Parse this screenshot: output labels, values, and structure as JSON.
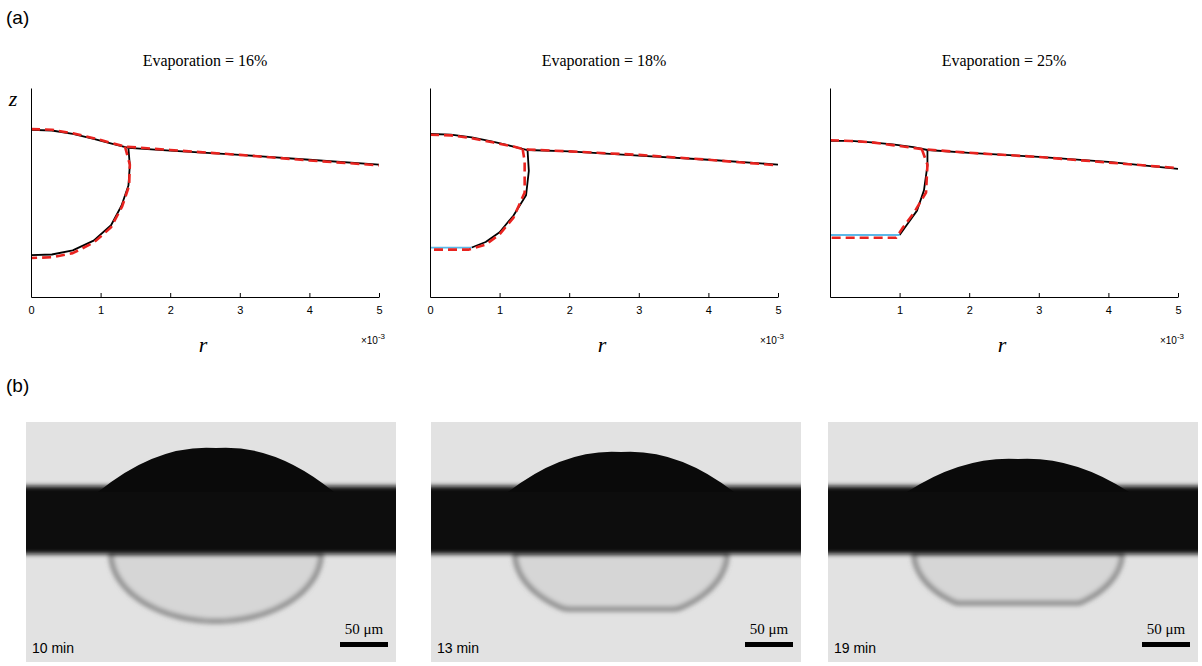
{
  "chart_data": [
    {
      "type": "line",
      "title": "Evaporation = 16%",
      "x_label": "r",
      "y_label": "z",
      "xlim": [
        0,
        0.005
      ],
      "ylim": [
        0,
        0.003
      ],
      "xticks": [
        0,
        {
          "value": 0.001,
          "label": "1"
        },
        {
          "value": 0.002,
          "label": "2"
        },
        {
          "value": 0.003,
          "label": "3"
        },
        {
          "value": 0.004,
          "label": "4"
        },
        {
          "value": 0.005,
          "label": "5"
        }
      ],
      "x_multiplier": {
        "base": "×10",
        "power": "-3"
      },
      "tick_labels": "x",
      "series": [
        {
          "color": "#000000",
          "line_style": "solid",
          "x": [
            0,
            0.0003,
            0.0006,
            0.0009,
            0.0012,
            0.0014,
            0.002,
            0.003,
            0.004,
            0.005
          ],
          "values": [
            0.0024,
            0.00239,
            0.00234,
            0.00227,
            0.00219,
            0.00214,
            0.0021,
            0.00204,
            0.00197,
            0.0019
          ]
        },
        {
          "color": "#000000",
          "line_style": "solid",
          "x": [
            0.0014,
            0.00142,
            0.0014,
            0.0013,
            0.00115,
            0.0009,
            0.0006,
            0.0003,
            0
          ],
          "values": [
            0.00213,
            0.00189,
            0.0016,
            0.00131,
            0.00103,
            0.00081,
            0.00067,
            0.00061,
            0.0006
          ]
        },
        {
          "color": "#e8231f",
          "line_style": "dashed",
          "x": [
            0,
            0.0003,
            0.0006,
            0.0009,
            0.0012,
            0.00135,
            0.002,
            0.003,
            0.004,
            0.005
          ],
          "values": [
            0.00241,
            0.0024,
            0.00235,
            0.00228,
            0.0022,
            0.00216,
            0.00211,
            0.00204,
            0.00196,
            0.00189
          ]
        },
        {
          "color": "#e8231f",
          "line_style": "dashed",
          "x": [
            0.00135,
            0.00142,
            0.00141,
            0.00131,
            0.00115,
            0.0009,
            0.0006,
            0.0003,
            0
          ],
          "values": [
            0.00216,
            0.0019,
            0.0016,
            0.0013,
            0.001,
            0.00078,
            0.00063,
            0.00057,
            0.00056
          ]
        }
      ]
    },
    {
      "type": "line",
      "title": "Evaporation = 18%",
      "x_label": "r",
      "xlim": [
        0,
        0.005
      ],
      "ylim": [
        0,
        0.003
      ],
      "xticks": [
        0,
        {
          "value": 0.001,
          "label": "1"
        },
        {
          "value": 0.002,
          "label": "2"
        },
        {
          "value": 0.003,
          "label": "3"
        },
        {
          "value": 0.004,
          "label": "4"
        },
        {
          "value": 0.005,
          "label": "5"
        }
      ],
      "x_multiplier": {
        "base": "×10",
        "power": "-3"
      },
      "tick_labels": "x",
      "series": [
        {
          "color": "#000000",
          "line_style": "solid",
          "x": [
            0,
            0.0003,
            0.0006,
            0.0009,
            0.0012,
            0.0014,
            0.002,
            0.003,
            0.004,
            0.005
          ],
          "values": [
            0.00234,
            0.00233,
            0.00229,
            0.00223,
            0.00216,
            0.00211,
            0.00209,
            0.00203,
            0.00197,
            0.0019
          ]
        },
        {
          "color": "#000000",
          "line_style": "solid",
          "x": [
            0.0014,
            0.00142,
            0.00138,
            0.0012,
            0.001,
            0.0008,
            0.0006
          ],
          "values": [
            0.00213,
            0.00181,
            0.00146,
            0.00117,
            0.00093,
            0.00079,
            0.00071
          ]
        },
        {
          "color": "#5bb8e8",
          "line_style": "solid",
          "x": [
            0,
            0.0006
          ],
          "values": [
            0.00071,
            0.00071
          ]
        },
        {
          "color": "#e8231f",
          "line_style": "dashed",
          "x": [
            0,
            0.0003,
            0.0006,
            0.0009,
            0.0012,
            0.00135,
            0.002,
            0.003,
            0.004,
            0.005
          ],
          "values": [
            0.00233,
            0.00232,
            0.00228,
            0.00222,
            0.00216,
            0.00212,
            0.00209,
            0.00204,
            0.00197,
            0.00189
          ]
        },
        {
          "color": "#e8231f",
          "line_style": "dashed",
          "x": [
            0.00133,
            0.00136,
            0.00136,
            0.0012,
            0.001,
            0.0008,
            0.00055,
            0
          ],
          "values": [
            0.00213,
            0.00195,
            0.0015,
            0.00114,
            0.0009,
            0.00075,
            0.00068,
            0.00068
          ]
        }
      ]
    },
    {
      "type": "line",
      "title": "Evaporation = 25%",
      "x_label": "r",
      "xlim": [
        0,
        0.005
      ],
      "ylim": [
        0,
        0.003
      ],
      "xticks": [
        {
          "value": 0.001,
          "label": "1"
        },
        {
          "value": 0.002,
          "label": "2"
        },
        {
          "value": 0.003,
          "label": "3"
        },
        {
          "value": 0.004,
          "label": "4"
        },
        {
          "value": 0.005,
          "label": "5"
        }
      ],
      "x_multiplier": {
        "base": "×10",
        "power": "-3"
      },
      "tick_labels": "x",
      "series": [
        {
          "color": "#000000",
          "line_style": "solid",
          "x": [
            0,
            0.0003,
            0.0006,
            0.0009,
            0.0012,
            0.0014,
            0.002,
            0.003,
            0.004,
            0.005
          ],
          "values": [
            0.00224,
            0.00224,
            0.00222,
            0.00219,
            0.00215,
            0.00211,
            0.00207,
            0.00201,
            0.00194,
            0.00184
          ]
        },
        {
          "color": "#000000",
          "line_style": "solid",
          "x": [
            0.0014,
            0.0014,
            0.00135,
            0.00125,
            0.0011,
            0.001
          ],
          "values": [
            0.0021,
            0.00189,
            0.00153,
            0.00124,
            0.00103,
            0.00089
          ]
        },
        {
          "color": "#5bb8e8",
          "line_style": "solid",
          "x": [
            0,
            0.001
          ],
          "values": [
            0.00089,
            0.00089
          ]
        },
        {
          "color": "#e8231f",
          "line_style": "dashed",
          "x": [
            0,
            0.0003,
            0.0006,
            0.0009,
            0.0012,
            0.00135,
            0.002,
            0.003,
            0.004,
            0.005
          ],
          "values": [
            0.00225,
            0.00224,
            0.00222,
            0.00218,
            0.00214,
            0.00212,
            0.00207,
            0.00201,
            0.00193,
            0.00185
          ]
        },
        {
          "color": "#e8231f",
          "line_style": "dashed",
          "x": [
            0.00132,
            0.0014,
            0.00138,
            0.0012,
            0.00105,
            0.00095,
            0
          ],
          "values": [
            0.00212,
            0.0019,
            0.0015,
            0.0012,
            0.001,
            0.00085,
            0.00085
          ]
        }
      ]
    }
  ],
  "panel_labels": [
    "(a)",
    "(b)"
  ],
  "images": [
    {
      "time": "10 min",
      "scale_bar": "50 μm"
    },
    {
      "time": "13 min",
      "scale_bar": "50 μm"
    },
    {
      "time": "19 min",
      "scale_bar": "50 μm"
    }
  ]
}
